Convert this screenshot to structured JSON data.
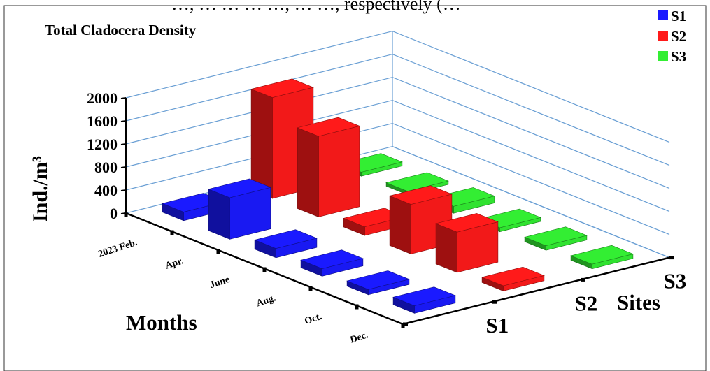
{
  "page": {
    "top_caption": "…, … … … …, … …, respectively (…"
  },
  "chart_data": {
    "type": "bar3d",
    "title": "Total Cladocera Density",
    "ylabel": "Ind./m³",
    "xlabel": "Months",
    "zlabel": "Sites",
    "ylim": [
      0,
      2000
    ],
    "yticks": [
      "0",
      "400",
      "800",
      "1200",
      "1600",
      "2000"
    ],
    "categories": [
      "2023 Feb.",
      "Apr.",
      "June",
      "Aug.",
      "Oct.",
      "Dec."
    ],
    "sites": [
      "S1",
      "S2",
      "S3"
    ],
    "legend_position": "top-right",
    "series": [
      {
        "name": "S1",
        "color": "#1a1aff",
        "values": [
          150,
          720,
          160,
          130,
          90,
          130
        ]
      },
      {
        "name": "S2",
        "color": "#ff1a1a",
        "values": [
          1750,
          1400,
          150,
          860,
          700,
          90
        ]
      },
      {
        "name": "S3",
        "color": "#33ee33",
        "values": [
          70,
          60,
          120,
          70,
          80,
          80
        ]
      }
    ]
  }
}
